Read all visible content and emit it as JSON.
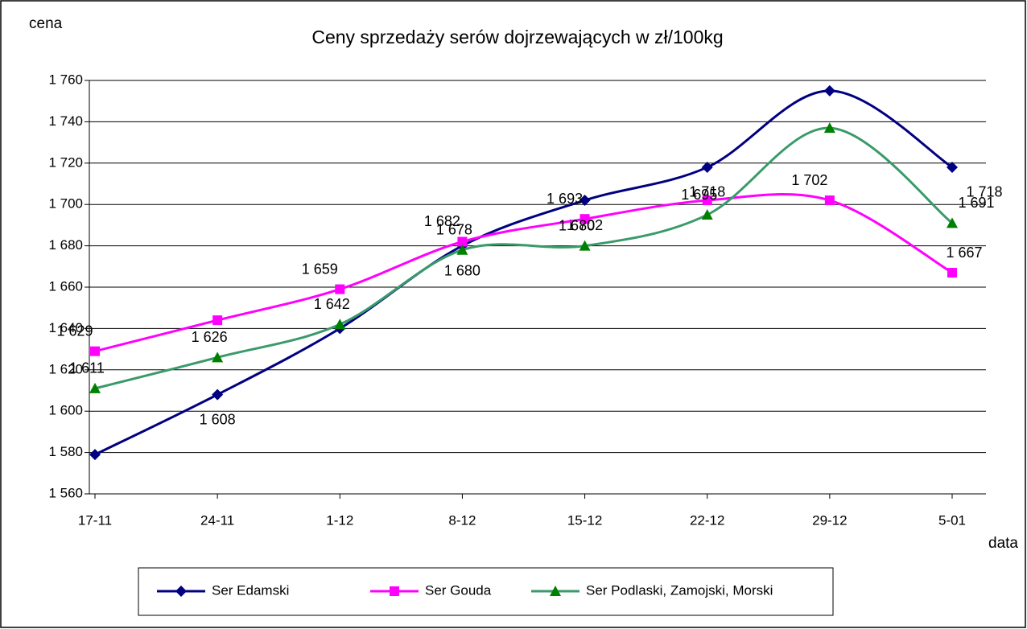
{
  "chart_data": {
    "type": "line",
    "title": "Ceny sprzedaży serów dojrzewających w zł/100kg",
    "y_label": "cena",
    "x_label": "data",
    "categories": [
      "17-11",
      "24-11",
      "1-12",
      "8-12",
      "15-12",
      "22-12",
      "29-12",
      "5-01"
    ],
    "series": [
      {
        "name": "Ser Edamski",
        "color": "#000080",
        "marker": "diamond",
        "values": [
          1579,
          1608,
          1640,
          1680,
          1702,
          1718,
          1755,
          1718
        ],
        "value_labels": [
          null,
          "1 608",
          null,
          "1 680",
          "1 702",
          "1 718",
          null,
          "1 718"
        ]
      },
      {
        "name": "Ser Gouda",
        "color": "#ff00ff",
        "marker": "square",
        "values": [
          1629,
          1644,
          1659,
          1682,
          1693,
          1702,
          1702,
          1667
        ],
        "value_labels": [
          "1 629",
          null,
          "1 659",
          "1 682",
          "1 693",
          null,
          "1 702",
          "1 667"
        ]
      },
      {
        "name": "Ser Podlaski, Zamojski, Morski",
        "color": "#3a9a6a",
        "marker_color": "#008000",
        "marker": "triangle",
        "values": [
          1611,
          1626,
          1642,
          1678,
          1680,
          1695,
          1737,
          1691
        ],
        "value_labels": [
          "1 611",
          "1 626",
          "1 642",
          "1 678",
          "1 680",
          "1 695",
          null,
          "1 691"
        ]
      }
    ],
    "ylim": [
      1560,
      1760
    ],
    "yticks": [
      {
        "value": 1560,
        "label": "1 560"
      },
      {
        "value": 1580,
        "label": "1 580"
      },
      {
        "value": 1600,
        "label": "1 600"
      },
      {
        "value": 1620,
        "label": "1 620"
      },
      {
        "value": 1640,
        "label": "1 640"
      },
      {
        "value": 1660,
        "label": "1 660"
      },
      {
        "value": 1680,
        "label": "1 680"
      },
      {
        "value": 1700,
        "label": "1 700"
      },
      {
        "value": 1720,
        "label": "1 720"
      },
      {
        "value": 1740,
        "label": "1 740"
      },
      {
        "value": 1760,
        "label": "1 760"
      }
    ],
    "grid": true,
    "legend": "bottom"
  }
}
